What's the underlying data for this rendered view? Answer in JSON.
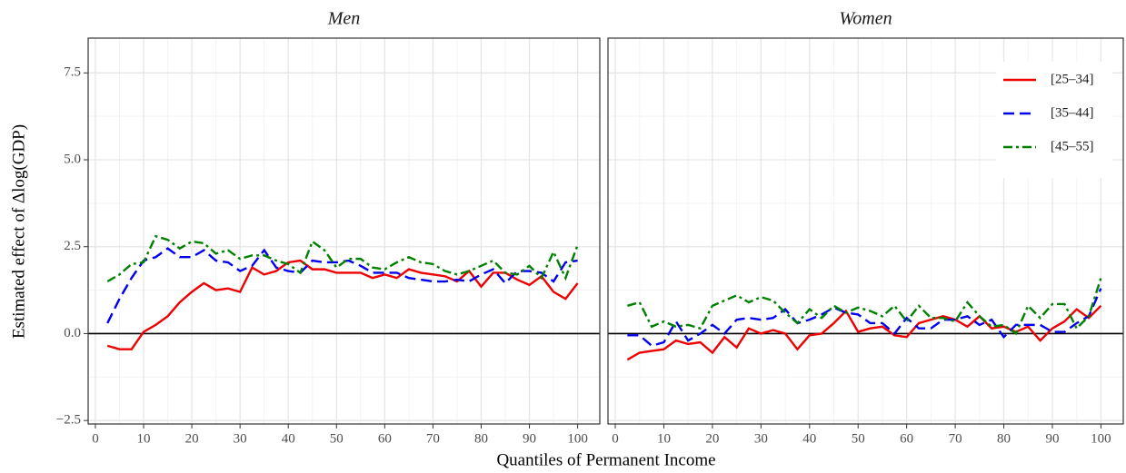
{
  "ylabel": "Estimated effect of Δlog(GDP)",
  "xlabel": "Quantiles of Permanent Income",
  "chart_data": [
    {
      "type": "line",
      "title": "Men",
      "x": [
        2.5,
        5,
        7.5,
        10,
        12.5,
        15,
        17.5,
        20,
        22.5,
        25,
        27.5,
        30,
        32.5,
        35,
        37.5,
        40,
        42.5,
        45,
        47.5,
        50,
        52.5,
        55,
        57.5,
        60,
        62.5,
        65,
        67.5,
        70,
        72.5,
        75,
        77.5,
        80,
        82.5,
        85,
        87.5,
        90,
        92.5,
        95,
        97.5,
        100
      ],
      "series": [
        {
          "color": "#ee0000",
          "dash": "none",
          "values": [
            -0.35,
            -0.45,
            -0.45,
            0.05,
            0.25,
            0.5,
            0.9,
            1.2,
            1.45,
            1.25,
            1.3,
            1.2,
            1.9,
            1.7,
            1.8,
            2.05,
            2.1,
            1.85,
            1.85,
            1.75,
            1.75,
            1.75,
            1.6,
            1.7,
            1.6,
            1.85,
            1.75,
            1.7,
            1.65,
            1.5,
            1.8,
            1.35,
            1.75,
            1.75,
            1.55,
            1.4,
            1.65,
            1.2,
            1.0,
            1.45
          ]
        },
        {
          "color": "#0000ee",
          "dash": "12 6",
          "values": [
            0.3,
            1.0,
            1.6,
            2.1,
            2.2,
            2.45,
            2.2,
            2.2,
            2.4,
            2.1,
            2.05,
            1.8,
            1.95,
            2.4,
            1.9,
            1.8,
            1.75,
            2.1,
            2.05,
            2.05,
            2.1,
            1.95,
            1.75,
            1.75,
            1.75,
            1.6,
            1.55,
            1.5,
            1.5,
            1.55,
            1.5,
            1.7,
            1.85,
            1.45,
            1.8,
            1.8,
            1.75,
            1.5,
            2.05,
            2.1
          ]
        },
        {
          "color": "#008000",
          "dash": "10 4 3 4",
          "values": [
            1.5,
            1.7,
            2.0,
            2.05,
            2.8,
            2.7,
            2.45,
            2.65,
            2.6,
            2.3,
            2.4,
            2.15,
            2.25,
            2.25,
            2.1,
            2.0,
            1.75,
            2.65,
            2.4,
            1.9,
            2.15,
            2.15,
            1.9,
            1.85,
            2.05,
            2.2,
            2.05,
            2.0,
            1.8,
            1.7,
            1.8,
            1.95,
            2.1,
            1.75,
            1.7,
            1.95,
            1.6,
            2.35,
            1.6,
            2.55
          ]
        }
      ],
      "hline": 0,
      "xlim": [
        -1.5,
        104.6
      ],
      "ylim": [
        -2.6,
        8.5
      ],
      "xticks": [
        0,
        10,
        20,
        30,
        40,
        50,
        60,
        70,
        80,
        90,
        100
      ],
      "yticks": [
        {
          "value": -2.5,
          "label": "−2.5"
        },
        {
          "value": 0,
          "label": "0.0"
        },
        2.5,
        {
          "value": 5,
          "label": "5.0"
        },
        7.5
      ],
      "grid": true
    },
    {
      "type": "line",
      "title": "Women",
      "x": [
        2.5,
        5,
        7.5,
        10,
        12.5,
        15,
        17.5,
        20,
        22.5,
        25,
        27.5,
        30,
        32.5,
        35,
        37.5,
        40,
        42.5,
        45,
        47.5,
        50,
        52.5,
        55,
        57.5,
        60,
        62.5,
        65,
        67.5,
        70,
        72.5,
        75,
        77.5,
        80,
        82.5,
        85,
        87.5,
        90,
        92.5,
        95,
        97.5,
        100
      ],
      "series": [
        {
          "name": "[25–34]",
          "color": "#ee0000",
          "dash": "none",
          "values": [
            -0.75,
            -0.55,
            -0.5,
            -0.45,
            -0.2,
            -0.3,
            -0.25,
            -0.55,
            -0.1,
            -0.4,
            0.15,
            0.0,
            0.1,
            0.0,
            -0.45,
            -0.05,
            0.0,
            0.3,
            0.65,
            0.05,
            0.15,
            0.2,
            -0.05,
            -0.1,
            0.3,
            0.4,
            0.5,
            0.4,
            0.2,
            0.5,
            0.15,
            0.2,
            0.05,
            0.2,
            -0.2,
            0.15,
            0.35,
            0.7,
            0.45,
            0.8
          ]
        },
        {
          "name": "[35–44]",
          "color": "#0000ee",
          "dash": "12 6",
          "values": [
            -0.05,
            -0.05,
            -0.35,
            -0.25,
            0.35,
            -0.2,
            0.0,
            0.25,
            0.0,
            0.4,
            0.45,
            0.4,
            0.45,
            0.7,
            0.3,
            0.4,
            0.55,
            0.75,
            0.6,
            0.55,
            0.3,
            0.3,
            0.0,
            0.45,
            0.15,
            0.15,
            0.4,
            0.4,
            0.5,
            0.25,
            0.4,
            -0.1,
            0.25,
            0.25,
            0.25,
            0.05,
            0.05,
            0.3,
            0.5,
            1.3
          ]
        },
        {
          "name": "[45–55]",
          "color": "#008000",
          "dash": "10 4 3 4",
          "values": [
            0.8,
            0.9,
            0.2,
            0.35,
            0.2,
            0.25,
            0.15,
            0.8,
            0.95,
            1.1,
            0.9,
            1.05,
            0.95,
            0.6,
            0.3,
            0.7,
            0.45,
            0.8,
            0.6,
            0.75,
            0.65,
            0.5,
            0.8,
            0.35,
            0.8,
            0.45,
            0.45,
            0.35,
            0.9,
            0.5,
            0.2,
            0.25,
            0.0,
            0.8,
            0.45,
            0.85,
            0.85,
            0.15,
            0.5,
            1.6
          ]
        }
      ],
      "hline": 0,
      "xlim": [
        -1.5,
        104.6
      ],
      "ylim": [
        -2.6,
        8.5
      ],
      "xticks": [
        0,
        10,
        20,
        30,
        40,
        50,
        60,
        70,
        80,
        90,
        100
      ],
      "yticks": [
        -2.5,
        0,
        2.5,
        5,
        7.5
      ],
      "grid": true,
      "legend": "top-right"
    }
  ]
}
